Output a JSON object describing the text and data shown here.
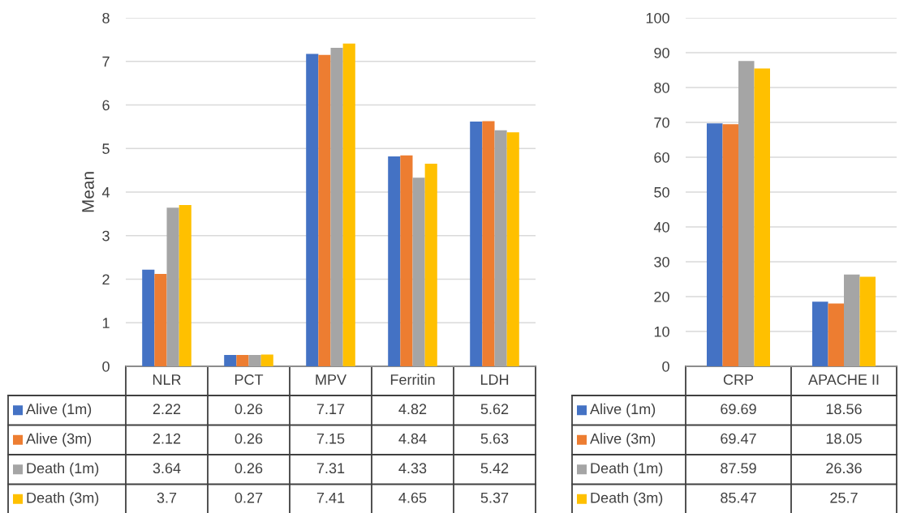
{
  "chart_data": [
    {
      "type": "bar",
      "ylabel": "Mean",
      "legend": "bottom left",
      "categories": [
        "NLR",
        "PCT",
        "MPV",
        "Ferritin",
        "LDH"
      ],
      "ylim": [
        0,
        8
      ],
      "yticks": [
        0,
        1,
        2,
        3,
        4,
        5,
        6,
        7,
        8
      ],
      "grid": "y",
      "data_labels": true,
      "series": [
        {
          "name": "Alive (1m)",
          "color": "#4472c4",
          "values": [
            2.22,
            0.26,
            7.17,
            4.82,
            5.62
          ]
        },
        {
          "name": "Alive (3m)",
          "color": "#ed7d31",
          "values": [
            2.12,
            0.26,
            7.15,
            4.84,
            5.63
          ]
        },
        {
          "name": "Death (1m)",
          "color": "#a5a5a5",
          "values": [
            3.64,
            0.26,
            7.31,
            4.33,
            5.42
          ]
        },
        {
          "name": "Death (3m)",
          "color": "#ffc000",
          "values": [
            3.7,
            0.27,
            7.41,
            4.65,
            5.37
          ]
        }
      ]
    },
    {
      "type": "bar",
      "categories": [
        "CRP",
        "APACHE II"
      ],
      "legend": "bottom left",
      "ylim": [
        0,
        100
      ],
      "yticks": [
        0,
        10,
        20,
        30,
        40,
        50,
        60,
        70,
        80,
        90,
        100
      ],
      "grid": "y",
      "data_labels": true,
      "series": [
        {
          "name": "Alive (1m)",
          "color": "#4472c4",
          "values": [
            69.69,
            18.56
          ]
        },
        {
          "name": "Alive (3m)",
          "color": "#ed7d31",
          "values": [
            69.47,
            18.05
          ]
        },
        {
          "name": "Death (1m)",
          "color": "#a5a5a5",
          "values": [
            87.59,
            26.36
          ]
        },
        {
          "name": "Death (3m)",
          "color": "#ffc000",
          "values": [
            85.47,
            25.7
          ]
        }
      ]
    }
  ]
}
